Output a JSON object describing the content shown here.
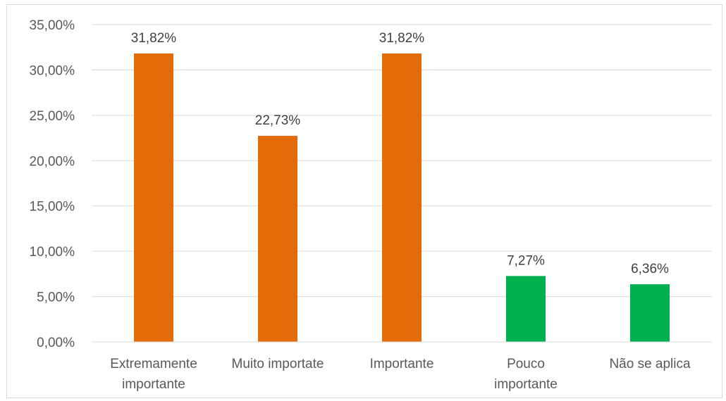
{
  "chart_data": {
    "type": "bar",
    "title": "",
    "xlabel": "",
    "ylabel": "",
    "categories": [
      [
        "Extremamente",
        "importante"
      ],
      [
        "Muito importate"
      ],
      [
        "Importante"
      ],
      [
        "Pouco",
        "importante"
      ],
      [
        "Não se aplica"
      ]
    ],
    "values": [
      31.82,
      22.73,
      31.82,
      7.27,
      6.36
    ],
    "data_labels": [
      "31,82%",
      "22,73%",
      "31,82%",
      "7,27%",
      "6,36%"
    ],
    "bar_colors": [
      "#E36C09",
      "#E36C09",
      "#E36C09",
      "#00B050",
      "#00B050"
    ],
    "ylim": [
      0,
      35
    ],
    "yticks": [
      0,
      5,
      10,
      15,
      20,
      25,
      30,
      35
    ],
    "ytick_labels": [
      "0,00%",
      "5,00%",
      "10,00%",
      "15,00%",
      "20,00%",
      "25,00%",
      "30,00%",
      "35,00%"
    ],
    "grid": true,
    "legend": "none",
    "gridline_color": "#d9d9d9"
  }
}
